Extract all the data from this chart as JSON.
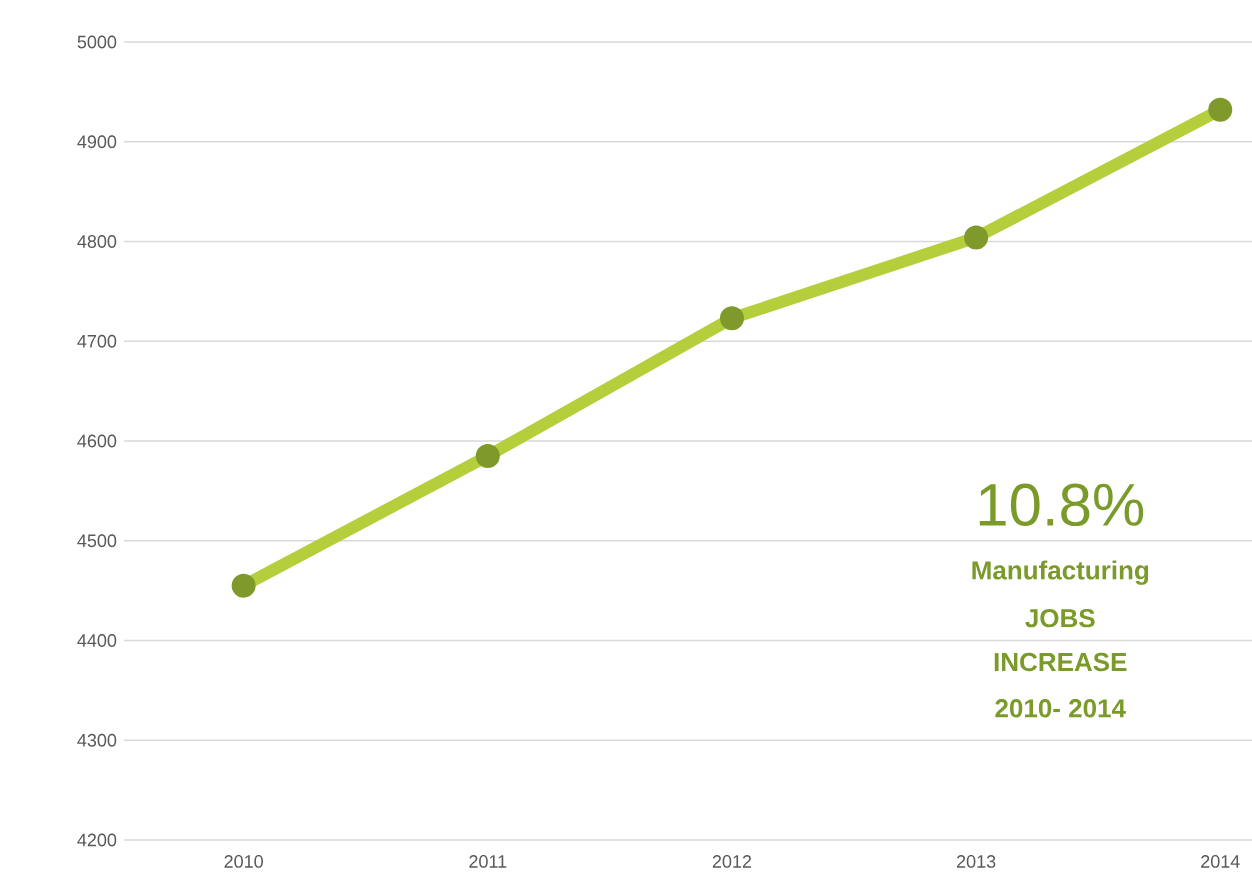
{
  "chart_data": {
    "type": "line",
    "categories": [
      "2010",
      "2011",
      "2012",
      "2013",
      "2014"
    ],
    "series": [
      {
        "color": "#b5cf3c",
        "values": [
          4455,
          4585,
          4723,
          4804,
          4932
        ]
      }
    ],
    "ylim": [
      4200,
      5000
    ],
    "yticks": [
      4200,
      4300,
      4400,
      4500,
      4600,
      4700,
      4800,
      4900,
      5000
    ],
    "grid": "y",
    "marker": "circle",
    "line_style": "solid",
    "annotations": [
      "10.8%",
      "Manufacturing",
      "JOBS",
      "INCREASE",
      "2010- 2014"
    ]
  }
}
